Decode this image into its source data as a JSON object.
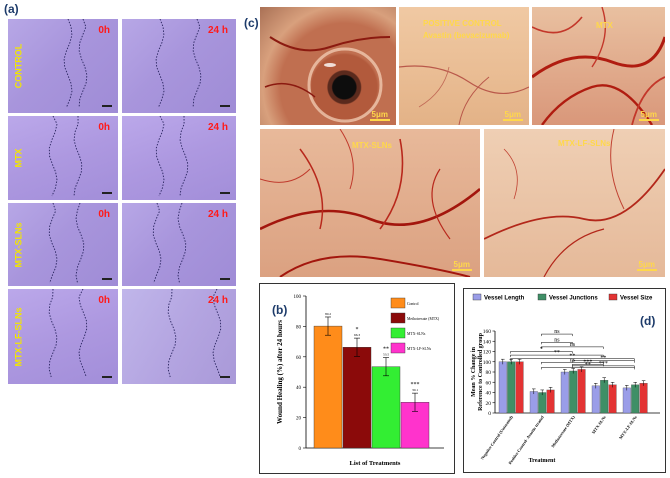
{
  "panels": {
    "a": "(a)",
    "b": "(b)",
    "c": "(c)",
    "d": "(d)"
  },
  "wound": {
    "times": [
      "0h",
      "24 h"
    ],
    "rows": [
      "CONTROL",
      "MTX",
      "MTX-SLNs",
      "MTX-LF-SLNs"
    ]
  },
  "cam": {
    "labels": {
      "positive": "POSITIVE CONTROL",
      "avastin": "Avastin (bevacizumab)",
      "mtx": "MTX",
      "mtx_slns": "MTX-SLNs",
      "mtx_lf_slns": "MTX-LF-SLNs"
    },
    "scale": "5μm"
  },
  "chart_data": [
    {
      "type": "bar",
      "panel": "b",
      "categories": [
        "Control",
        "Methotrexate (MTX)",
        "MTX-SLNs",
        "MTX-LF-SLNs"
      ],
      "values": [
        80.2,
        66.3,
        53.5,
        30.1
      ],
      "errors": [
        6,
        6,
        6,
        6
      ],
      "significance": [
        "",
        "*",
        "**",
        "***"
      ],
      "colors": [
        "#ff8c1a",
        "#8b0a0a",
        "#33ee33",
        "#ff33cc"
      ],
      "ylabel": "Wound Healing (%) after 24 hours",
      "xlabel": "List of Treatments",
      "ylim": [
        0,
        100
      ],
      "yticks": [
        0,
        20,
        40,
        60,
        80,
        100
      ],
      "legend_position": "top-right",
      "legend": [
        "Control",
        "Methotrexate (MTX)",
        "MTX-SLNs",
        "MTX-LF-SLNs"
      ]
    },
    {
      "type": "bar",
      "panel": "d",
      "categories": [
        "Negative Control (Untreated)",
        "Positive Control- Avastin treated",
        "Methotrexate (MTX)",
        "MTX-SLNs",
        "MTX-LF-SLNs"
      ],
      "series": [
        {
          "name": "Vessel Length",
          "values": [
            100,
            42,
            80,
            53,
            49
          ],
          "color": "#9a9de8"
        },
        {
          "name": "Vessel Junctions",
          "values": [
            100,
            40,
            82,
            64,
            55
          ],
          "color": "#3f8f66"
        },
        {
          "name": "Vessel Size",
          "values": [
            100,
            45,
            85,
            55,
            58
          ],
          "color": "#e33333"
        }
      ],
      "errors": 5,
      "ylabel": "Mean % Change in Reference to Controlled group",
      "xlabel": "Treatment",
      "ylim": [
        0,
        160
      ],
      "yticks": [
        0,
        20,
        40,
        60,
        80,
        100,
        120,
        140,
        160
      ],
      "legend_position": "top",
      "brackets": [
        "ns",
        "ns",
        "ns",
        "*",
        "**",
        "**",
        "**",
        "ns",
        "***",
        "***",
        "**"
      ]
    }
  ]
}
